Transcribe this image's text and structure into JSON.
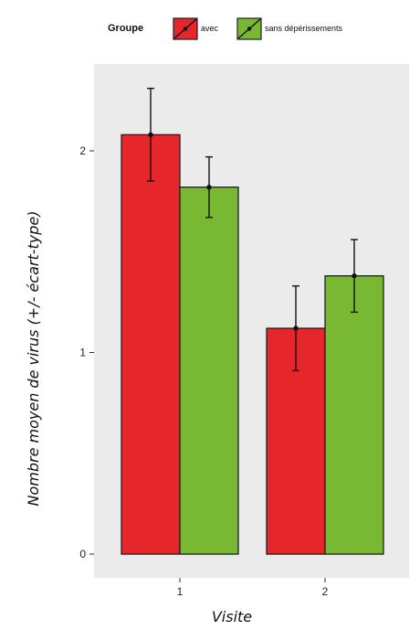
{
  "chart_data": {
    "type": "bar",
    "title": "",
    "xlabel": "Visite",
    "ylabel": "Nombre moyen de virus (+/- écart-type)",
    "categories": [
      "1",
      "2"
    ],
    "ylim": [
      0,
      2.4
    ],
    "y_ticks": [
      0,
      1,
      2
    ],
    "grid": false,
    "legend": {
      "title": "Groupe",
      "placement": "top",
      "items": [
        "avec",
        "sans dépérissements"
      ]
    },
    "series": [
      {
        "name": "avec",
        "color": "#e5262a",
        "values": [
          2.08,
          1.12
        ],
        "error": [
          0.23,
          0.21
        ]
      },
      {
        "name": "sans dépérissements",
        "color": "#79b832",
        "values": [
          1.82,
          1.38
        ],
        "error": [
          0.15,
          0.18
        ]
      }
    ]
  }
}
